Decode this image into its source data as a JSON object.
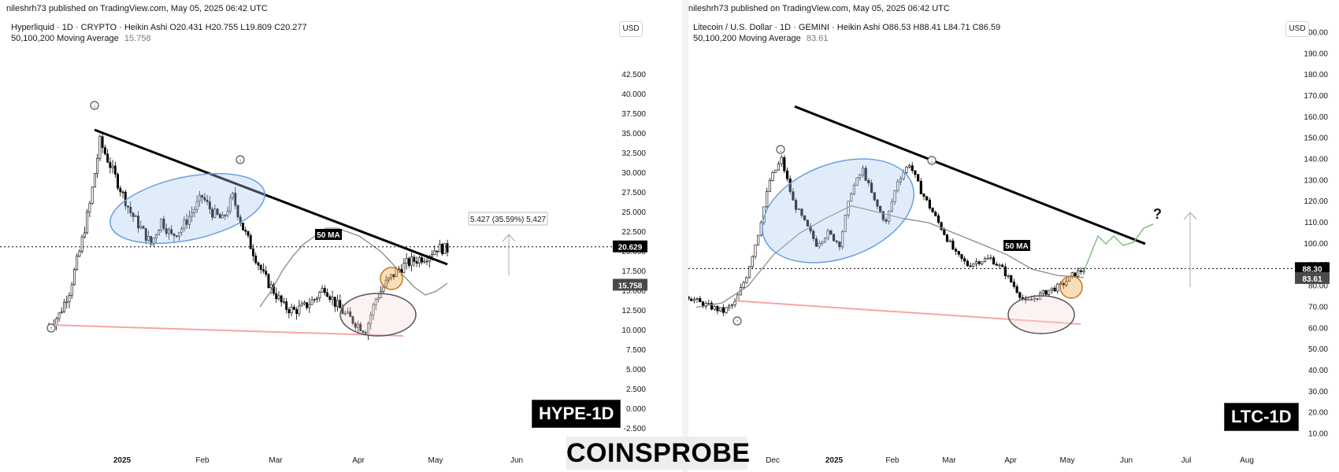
{
  "left": {
    "publish_line": "nileshrh73 published on TradingView.com, May 05, 2025 06:42 UTC",
    "title": "Hyperliquid · 1D · CRYPTO · Heikin Ashi",
    "ohlc": "O20.431  H20.755  L19.809  C20.277",
    "ma_label": "50,100,200 Moving Average",
    "ma_value": "15.758",
    "currency": "USD",
    "ticker_label": "HYPE-1D",
    "ma_chart_label": "50 MA",
    "measure_label": "5.427 (35.59%) 5,427",
    "price_tag_current": "20.629",
    "price_tag_ma": "15.758",
    "colors": {
      "current_tag": "#000000",
      "ma_tag": "#4a4a4a"
    }
  },
  "right": {
    "publish_line": "nileshrh73 published on TradingView.com, May 05, 2025 06:42 UTC",
    "title": "Litecoin / U.S. Dollar · 1D · GEMINI · Heikin Ashi",
    "ohlc": "O86.53  H88.41  L84.71  C86.59",
    "ma_label": "50,100,200 Moving Average",
    "ma_value": "83.61",
    "currency": "USD",
    "ticker_label": "LTC-1D",
    "ma_chart_label": "50 MA",
    "question_mark": "?",
    "price_tag_current": "88.30",
    "price_tag_ma": "83.61",
    "colors": {
      "current_tag": "#000000",
      "ma_tag": "#4a4a4a"
    }
  },
  "brand": "COINSPROBE",
  "chart_data": [
    {
      "type": "candlestick",
      "title": "Hyperliquid · 1D · CRYPTO · Heikin Ashi",
      "x_ticks": [
        "2025",
        "Feb",
        "Mar",
        "Apr",
        "May",
        "Jun"
      ],
      "y_ticks": [
        "-2.500",
        "0.000",
        "2.500",
        "5.000",
        "7.500",
        "10.000",
        "12.500",
        "15.000",
        "17.500",
        "20.000",
        "22.500",
        "25.000",
        "27.500",
        "30.000",
        "32.500",
        "35.000",
        "37.500",
        "40.000",
        "42.500"
      ],
      "ylim": [
        -3.5,
        45
      ],
      "series": [
        {
          "name": "price",
          "values": [
            10.5,
            12,
            15,
            20,
            26,
            34,
            31,
            28,
            25,
            23,
            21,
            24,
            22,
            23,
            25,
            27,
            25,
            24,
            27,
            23,
            20,
            17,
            15,
            13,
            12.5,
            13,
            14,
            15.5,
            13.5,
            12,
            11,
            10,
            14,
            16,
            17.5,
            18.5,
            19,
            19.5,
            20.5,
            20.3
          ]
        },
        {
          "name": "50 MA",
          "values": [
            13,
            15,
            17.5,
            19.5,
            21,
            22,
            23,
            23,
            22.5,
            22,
            21,
            20,
            18.5,
            17,
            15.5,
            14.5,
            15,
            16
          ]
        }
      ],
      "annotations": {
        "trendline": [
          [
            35.5,
            18.4
          ]
        ],
        "support_line": [
          10.7,
          9.3
        ],
        "current_price": 20.629,
        "ma_value": 15.758,
        "measure": "5.427 (35.59%) 5,427"
      }
    },
    {
      "type": "candlestick",
      "title": "Litecoin / U.S. Dollar · 1D · GEMINI · Heikin Ashi",
      "x_ticks": [
        "Dec",
        "2025",
        "Feb",
        "Mar",
        "Apr",
        "May",
        "Jun",
        "Jul",
        "Aug"
      ],
      "y_ticks": [
        "10.00",
        "20.00",
        "30.00",
        "40.00",
        "50.00",
        "60.00",
        "70.00",
        "80.00",
        "90.00",
        "100.00",
        "110.00",
        "120.00",
        "130.00",
        "140.00",
        "150.00",
        "160.00",
        "170.00",
        "180.00",
        "190.00",
        "200.00"
      ],
      "ylim": [
        5,
        205
      ],
      "series": [
        {
          "name": "price",
          "values": [
            75,
            72,
            70,
            68,
            72,
            85,
            105,
            130,
            140,
            120,
            110,
            100,
            105,
            100,
            125,
            135,
            120,
            110,
            130,
            138,
            125,
            115,
            105,
            95,
            90,
            92,
            93,
            88,
            80,
            72,
            75,
            78,
            80,
            85,
            88
          ]
        },
        {
          "name": "50 MA",
          "values": [
            70,
            72,
            80,
            95,
            105,
            112,
            118,
            115,
            112,
            110,
            105,
            100,
            95,
            88,
            85,
            84
          ]
        }
      ],
      "annotations": {
        "trendline": [
          [
            165,
            100
          ]
        ],
        "support_line": [
          73,
          62
        ],
        "current_price": 88.3,
        "ma_value": 83.61,
        "question_mark": "?"
      }
    }
  ]
}
